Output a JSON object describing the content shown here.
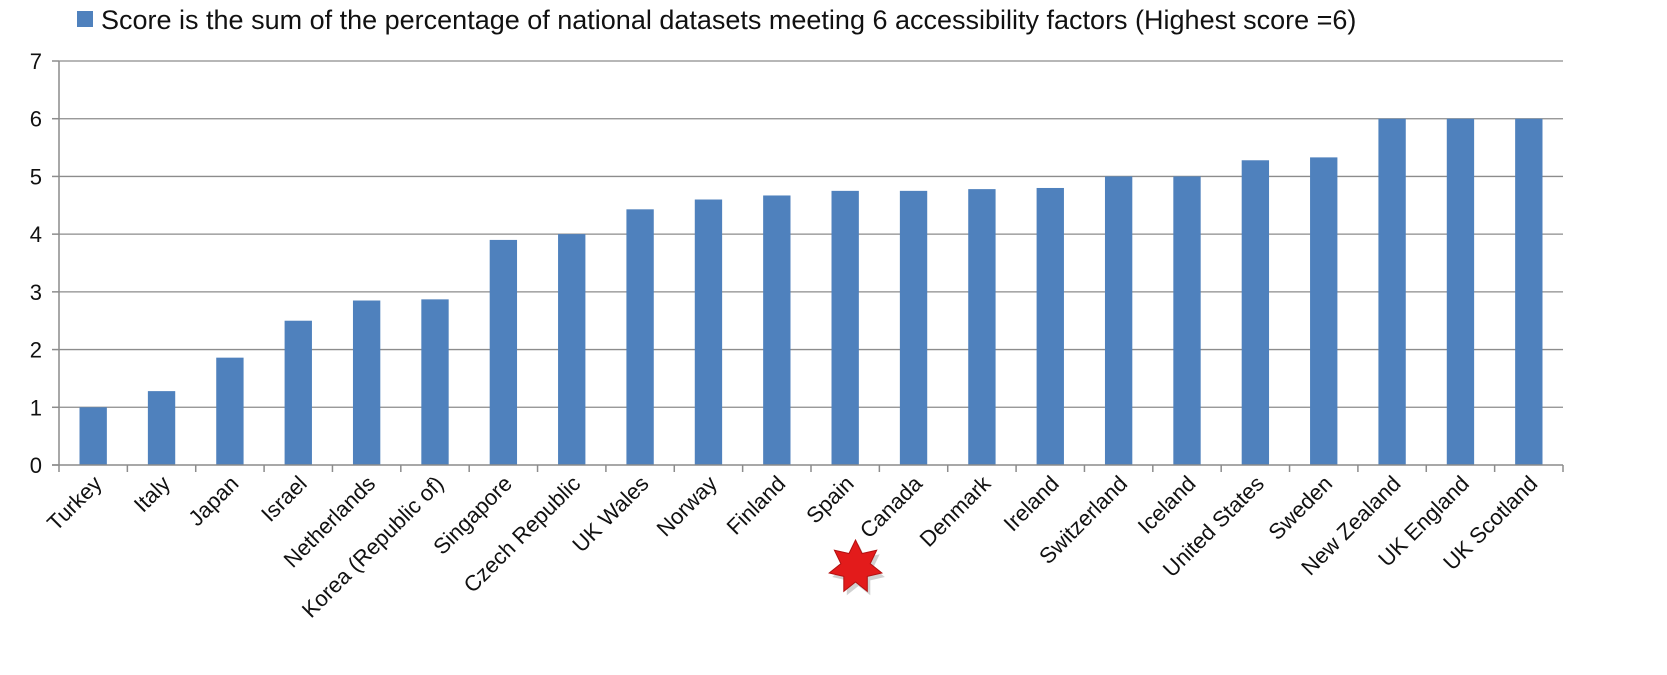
{
  "chart_data": {
    "type": "bar",
    "legend": {
      "label": "Score is the sum of the percentage of national datasets meeting 6 accessibility factors (Highest score =6)",
      "position": "top",
      "color": "#4f81bd"
    },
    "categories": [
      "Turkey",
      "Italy",
      "Japan",
      "Israel",
      "Netherlands",
      "Korea (Republic of)",
      "Singapore",
      "Czech Republic",
      "UK Wales",
      "Norway",
      "Finland",
      "Spain",
      "Canada",
      "Denmark",
      "Ireland",
      "Switzerland",
      "Iceland",
      "United States",
      "Sweden",
      "New Zealand",
      "UK England",
      "UK Scotland"
    ],
    "values": [
      1.0,
      1.28,
      1.86,
      2.5,
      2.85,
      2.87,
      3.9,
      4.0,
      4.43,
      4.6,
      4.67,
      4.75,
      4.75,
      4.78,
      4.8,
      5.0,
      5.0,
      5.28,
      5.33,
      6.0,
      6.0,
      6.0
    ],
    "ylim": [
      0,
      7
    ],
    "yticks": [
      "0",
      "1",
      "2",
      "3",
      "4",
      "5",
      "6",
      "7"
    ],
    "grid": true,
    "bar_color": "#4f81bd",
    "highlight": {
      "category": "Canada",
      "marker": "red-star-icon",
      "color": "#e31b1b"
    }
  }
}
